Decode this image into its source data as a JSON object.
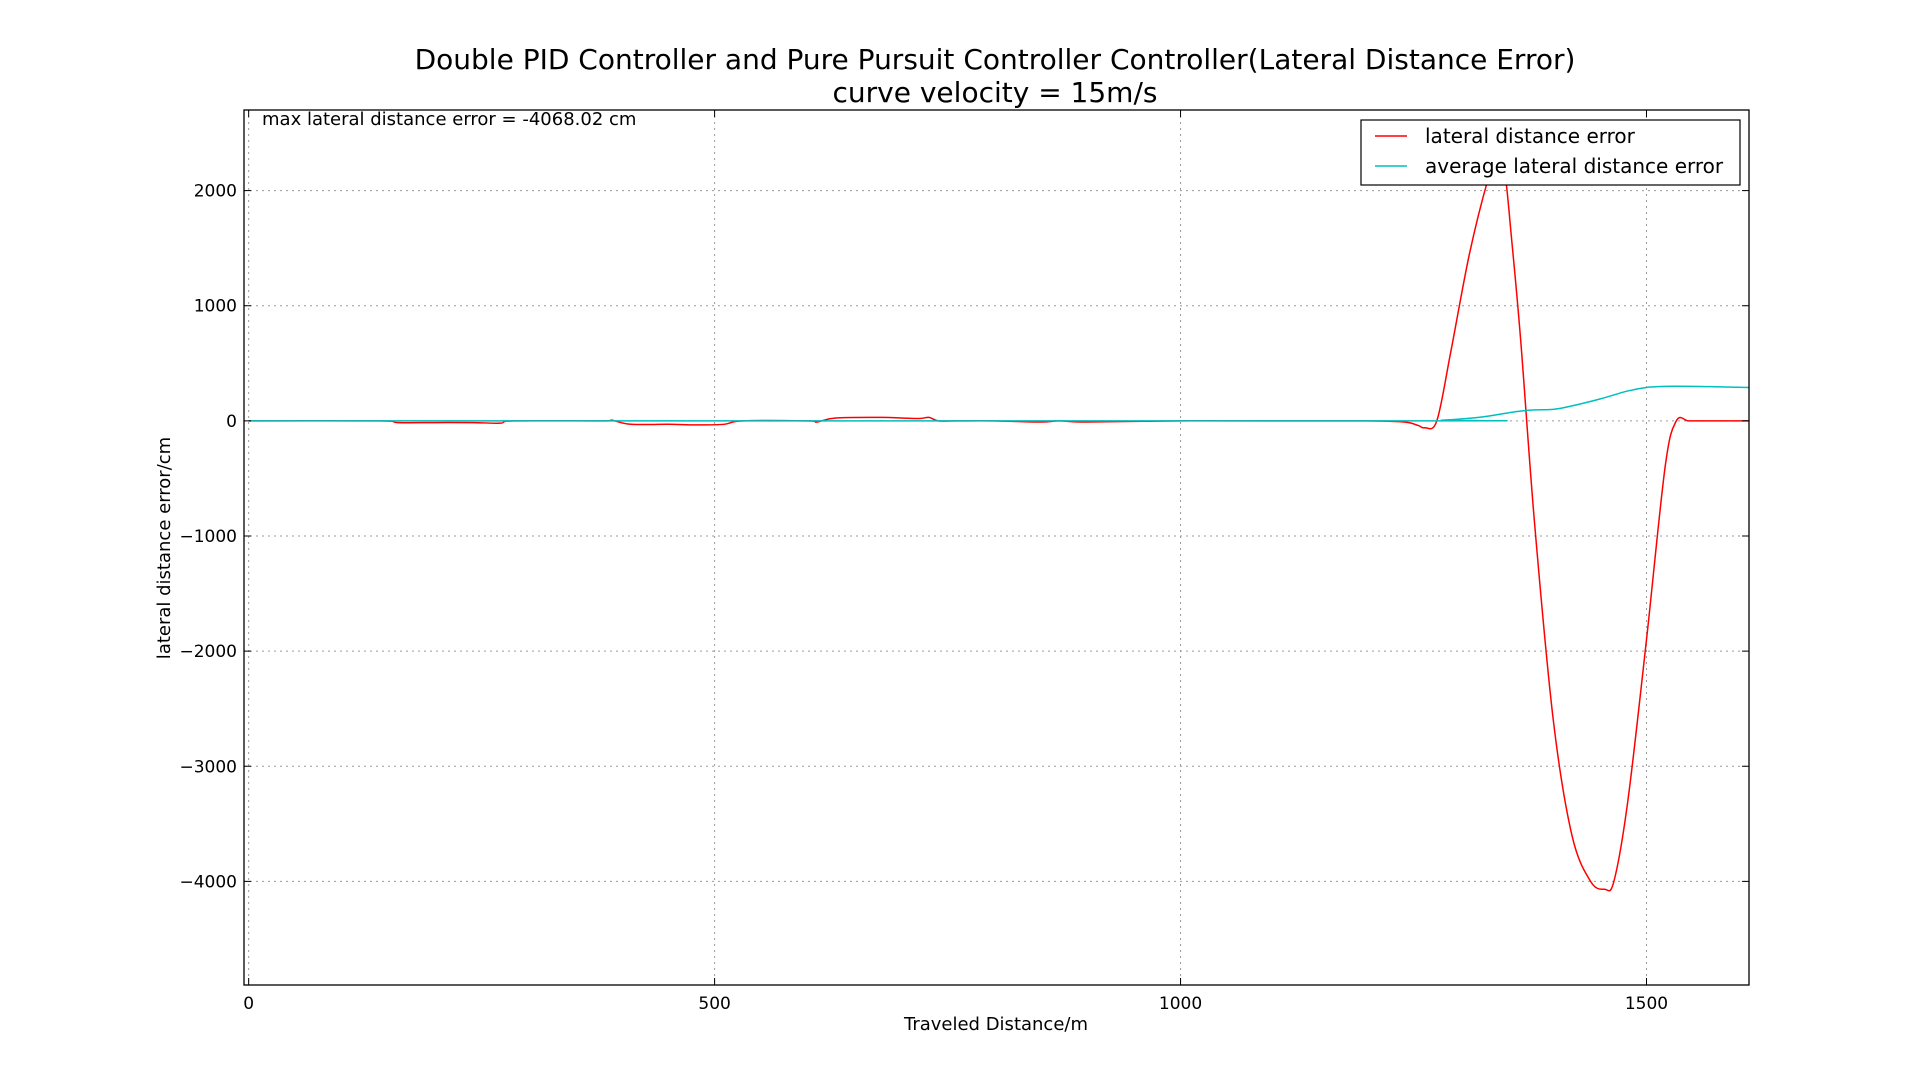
{
  "chart_data": {
    "type": "line",
    "title": "Double PID Controller and Pure Pursuit Controller Controller(Lateral Distance Error)",
    "subtitle": "curve velocity = 15m/s",
    "xlabel": "Traveled Distance/m",
    "ylabel": "lateral distance error/cm",
    "xlim": [
      -5,
      1610
    ],
    "ylim": [
      -4900,
      2700
    ],
    "xticks": [
      0,
      500,
      1000,
      1500
    ],
    "xtick_labels": [
      "0",
      "500",
      "1000",
      "1500"
    ],
    "yticks": [
      2000,
      1000,
      0,
      -1000,
      -2000,
      -3000,
      -4000
    ],
    "ytick_labels": [
      "2000",
      "1000",
      "0",
      "−1000",
      "−2000",
      "−3000",
      "−4000"
    ],
    "grid": true,
    "legend_position": "top-right",
    "annotation": "max lateral distance error = -4068.02 cm",
    "series": [
      {
        "name": "lateral distance error",
        "color": "#ff0000",
        "x": [
          0,
          140,
          160,
          200,
          240,
          270,
          285,
          380,
          390,
          410,
          450,
          480,
          510,
          530,
          600,
          610,
          630,
          680,
          700,
          720,
          730,
          740,
          760,
          800,
          850,
          870,
          900,
          1000,
          1100,
          1200,
          1240,
          1255,
          1262,
          1275,
          1290,
          1310,
          1330,
          1340,
          1348,
          1355,
          1365,
          1380,
          1400,
          1420,
          1440,
          1455,
          1465,
          1480,
          1500,
          1520,
          1532,
          1545,
          1560,
          1580,
          1610
        ],
        "y": [
          0,
          0,
          -15,
          -15,
          -15,
          -20,
          0,
          0,
          5,
          -30,
          -30,
          -35,
          -30,
          0,
          0,
          -10,
          25,
          30,
          25,
          20,
          30,
          0,
          0,
          0,
          -10,
          0,
          -10,
          0,
          0,
          0,
          -10,
          -40,
          -60,
          0,
          600,
          1450,
          2100,
          2300,
          2150,
          1600,
          700,
          -900,
          -2600,
          -3600,
          -4000,
          -4068,
          -4000,
          -3300,
          -1900,
          -400,
          0,
          0,
          0,
          0,
          0
        ]
      },
      {
        "name": "average lateral distance error",
        "color": "#00bfbf",
        "x": [
          0,
          1250,
          1280,
          1320,
          1360,
          1380,
          1400,
          1420,
          1450,
          1480,
          1500,
          1520,
          1550,
          1580,
          1610
        ],
        "y": [
          0,
          0,
          5,
          30,
          80,
          95,
          100,
          130,
          190,
          260,
          290,
          300,
          300,
          295,
          290
        ]
      }
    ]
  }
}
